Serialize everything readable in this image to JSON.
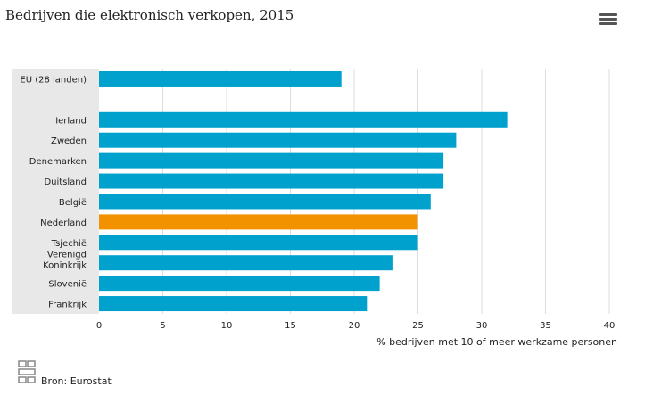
{
  "chart_data": {
    "type": "bar",
    "orientation": "horizontal",
    "title": "Bedrijven die elektronisch verkopen, 2015",
    "xlabel": "% bedrijven met 10 of meer werkzame personen",
    "xlim": [
      0,
      40
    ],
    "xticks": [
      0,
      5,
      10,
      15,
      20,
      25,
      30,
      35,
      40
    ],
    "grid": true,
    "categories": [
      "EU (28 landen)",
      "",
      "Ierland",
      "Zweden",
      "Denemarken",
      "Duitsland",
      "België",
      "Nederland",
      "Tsjechië",
      "Verenigd Koninkrijk",
      "Slovenië",
      "Frankrijk"
    ],
    "values": [
      19,
      null,
      32,
      28,
      27,
      27,
      26,
      25,
      25,
      23,
      22,
      21
    ],
    "highlight": "Nederland",
    "colors": {
      "bar": "#00a1cd",
      "highlight": "#f39200",
      "band": "#e8e8e8",
      "grid": "#dddddd"
    }
  },
  "source": "Bron: Eurostat",
  "menu_icon": "hamburger-menu-icon"
}
